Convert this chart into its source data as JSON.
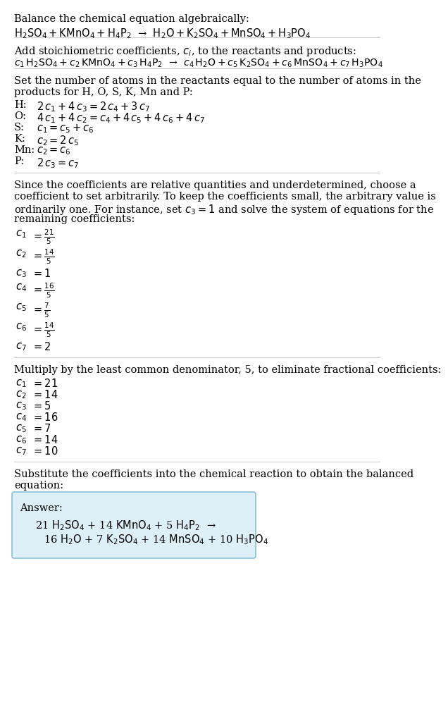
{
  "title_section": "Balance the chemical equation algebraically:",
  "equation1": "$\\mathrm{H_2SO_4 + KMnO_4 + H_4P_2}$  →  $\\mathrm{H_2O + K_2SO_4 + MnSO_4 + H_3PO_4}$",
  "section2_title": "Add stoichiometric coefficients, $c_i$, to the reactants and products:",
  "equation2": "$c_1\\,\\mathrm{H_2SO_4} + c_2\\,\\mathrm{KMnO_4} + c_3\\,\\mathrm{H_4P_2}$  →  $c_4\\,\\mathrm{H_2O} + c_5\\,\\mathrm{K_2SO_4} + c_6\\,\\mathrm{MnSO_4} + c_7\\,\\mathrm{H_3PO_4}$",
  "section3_title_line1": "Set the number of atoms in the reactants equal to the number of atoms in the",
  "section3_title_line2": "products for H, O, S, K, Mn and P:",
  "atom_equations": [
    [
      "H:",
      "$2\\,c_1 + 4\\,c_3 = 2\\,c_4 + 3\\,c_7$"
    ],
    [
      "O:",
      "$4\\,c_1 + 4\\,c_2 = c_4 + 4\\,c_5 + 4\\,c_6 + 4\\,c_7$"
    ],
    [
      "S:",
      "$c_1 = c_5 + c_6$"
    ],
    [
      "K:",
      "$c_2 = 2\\,c_5$"
    ],
    [
      "Mn:",
      "$c_2 = c_6$"
    ],
    [
      "P:",
      "$2\\,c_3 = c_7$"
    ]
  ],
  "section4_lines": [
    "Since the coefficients are relative quantities and underdetermined, choose a",
    "coefficient to set arbitrarily. To keep the coefficients small, the arbitrary value is",
    "ordinarily one. For instance, set $c_3 = 1$ and solve the system of equations for the",
    "remaining coefficients:"
  ],
  "coeffs_fractional_label": [
    "$c_1$",
    "$c_2$",
    "$c_3$",
    "$c_4$",
    "$c_5$",
    "$c_6$",
    "$c_7$"
  ],
  "coeffs_fractional_value": [
    "$= \\frac{21}{5}$",
    "$= \\frac{14}{5}$",
    "$= 1$",
    "$= \\frac{16}{5}$",
    "$= \\frac{7}{5}$",
    "$= \\frac{14}{5}$",
    "$= 2$"
  ],
  "section5_text": "Multiply by the least common denominator, 5, to eliminate fractional coefficients:",
  "coeffs_integer_label": [
    "$c_1$",
    "$c_2$",
    "$c_3$",
    "$c_4$",
    "$c_5$",
    "$c_6$",
    "$c_7$"
  ],
  "coeffs_integer_value": [
    "$= 21$",
    "$= 14$",
    "$= 5$",
    "$= 16$",
    "$= 7$",
    "$= 14$",
    "$= 10$"
  ],
  "section6_line1": "Substitute the coefficients into the chemical reaction to obtain the balanced",
  "section6_line2": "equation:",
  "answer_box_color": "#ddf0f8",
  "answer_box_edge_color": "#88c0d8",
  "answer_label": "Answer:",
  "answer_line1": "21 $\\mathrm{H_2SO_4}$ + 14 $\\mathrm{KMnO_4}$ + 5 $\\mathrm{H_4P_2}$  →",
  "answer_line2": "16 $\\mathrm{H_2O}$ + 7 $\\mathrm{K_2SO_4}$ + 14 $\\mathrm{MnSO_4}$ + 10 $\\mathrm{H_3PO_4}$",
  "bg_color": "#ffffff",
  "text_color": "#000000",
  "line_color": "#cccccc",
  "font_size": 10.5
}
